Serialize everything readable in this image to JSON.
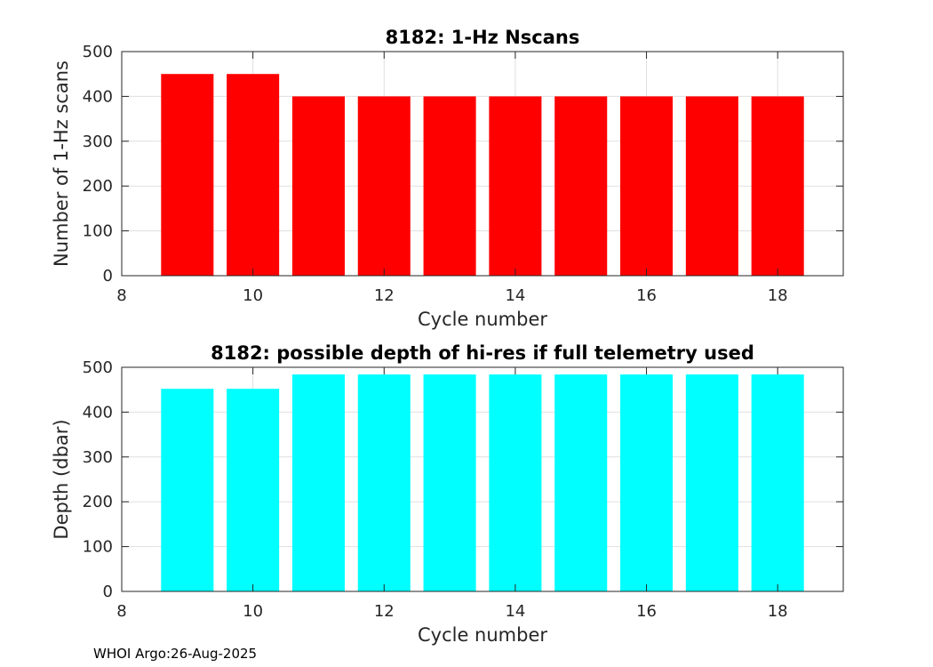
{
  "chart_data": [
    {
      "type": "bar",
      "title": "8182: 1-Hz Nscans",
      "xlabel": "Cycle number",
      "ylabel": "Number of 1-Hz scans",
      "x": [
        9,
        10,
        11,
        12,
        13,
        14,
        15,
        16,
        17,
        18
      ],
      "values": [
        450,
        450,
        400,
        400,
        400,
        400,
        400,
        400,
        400,
        400
      ],
      "xlim": [
        8,
        19
      ],
      "ylim": [
        0,
        500
      ],
      "xticks": [
        8,
        10,
        12,
        14,
        16,
        18
      ],
      "yticks": [
        0,
        100,
        200,
        300,
        400,
        500
      ],
      "grid": true,
      "bar_color": "#ff0000"
    },
    {
      "type": "bar",
      "title": "8182: possible depth of hi-res if full telemetry used",
      "xlabel": "Cycle number",
      "ylabel": "Depth (dbar)",
      "x": [
        9,
        10,
        11,
        12,
        13,
        14,
        15,
        16,
        17,
        18
      ],
      "values": [
        452,
        452,
        484,
        484,
        484,
        484,
        484,
        484,
        484,
        484
      ],
      "xlim": [
        8,
        19
      ],
      "ylim": [
        0,
        500
      ],
      "xticks": [
        8,
        10,
        12,
        14,
        16,
        18
      ],
      "yticks": [
        0,
        100,
        200,
        300,
        400,
        500
      ],
      "grid": true,
      "bar_color": "#00ffff"
    }
  ],
  "footer_text": "WHOI Argo:26-Aug-2025"
}
